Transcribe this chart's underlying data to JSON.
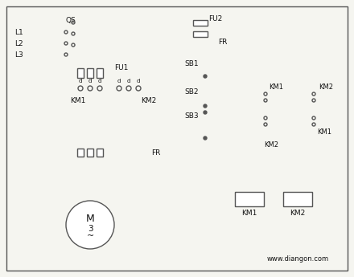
{
  "watermark": "www.diangon.com",
  "bg_color": "#f5f5f0",
  "lc": "#555555",
  "figsize": [
    4.4,
    3.45
  ],
  "dpi": 100,
  "border": [
    8,
    8,
    432,
    337
  ]
}
